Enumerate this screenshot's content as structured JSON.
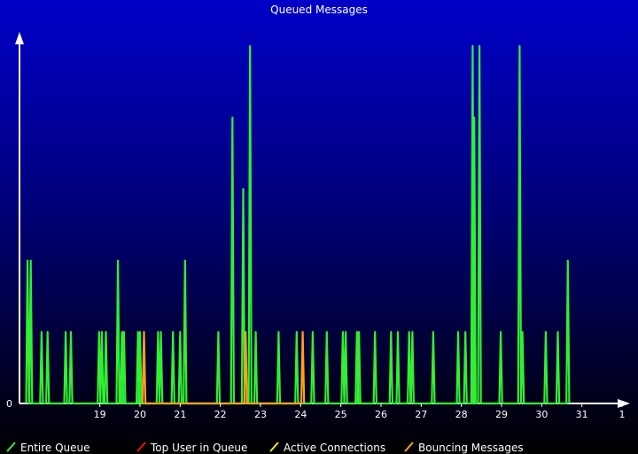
{
  "chart_data": {
    "type": "line",
    "title": "Queued Messages",
    "xlabel": "",
    "ylabel": "",
    "x_ticks": [
      "19",
      "20",
      "21",
      "22",
      "23",
      "24",
      "25",
      "26",
      "27",
      "28",
      "29",
      "30",
      "31",
      "1"
    ],
    "x_tick_positions": [
      19,
      20,
      21,
      22,
      23,
      24,
      25,
      26,
      27,
      28,
      29,
      30,
      31,
      32
    ],
    "y_ticks": [
      "0"
    ],
    "xlim": [
      17.0,
      32.0
    ],
    "ylim": [
      0,
      10
    ],
    "grid": false,
    "legend_position": "bottom",
    "series": [
      {
        "name": "Entire Queue",
        "color": "#33ee33",
        "spikes": [
          [
            17.2,
            4
          ],
          [
            17.28,
            4
          ],
          [
            17.55,
            2
          ],
          [
            17.7,
            2
          ],
          [
            18.15,
            2
          ],
          [
            18.28,
            2
          ],
          [
            18.98,
            2
          ],
          [
            19.05,
            2
          ],
          [
            19.15,
            2
          ],
          [
            19.45,
            4
          ],
          [
            19.55,
            2
          ],
          [
            19.6,
            2
          ],
          [
            19.95,
            2
          ],
          [
            20.0,
            2
          ],
          [
            20.45,
            2
          ],
          [
            20.52,
            2
          ],
          [
            20.82,
            2
          ],
          [
            21.0,
            2
          ],
          [
            21.12,
            4
          ],
          [
            21.95,
            2
          ],
          [
            22.3,
            8
          ],
          [
            22.57,
            6
          ],
          [
            22.74,
            10
          ],
          [
            22.88,
            2
          ],
          [
            23.45,
            2
          ],
          [
            23.9,
            2
          ],
          [
            24.3,
            2
          ],
          [
            24.65,
            2
          ],
          [
            25.05,
            2
          ],
          [
            25.12,
            2
          ],
          [
            25.4,
            2
          ],
          [
            25.45,
            2
          ],
          [
            25.85,
            2
          ],
          [
            26.25,
            2
          ],
          [
            26.42,
            2
          ],
          [
            26.7,
            2
          ],
          [
            26.78,
            2
          ],
          [
            27.3,
            2
          ],
          [
            27.92,
            2
          ],
          [
            28.1,
            2
          ],
          [
            28.28,
            10
          ],
          [
            28.32,
            8
          ],
          [
            28.45,
            10
          ],
          [
            28.98,
            2
          ],
          [
            29.45,
            10
          ],
          [
            29.52,
            2
          ],
          [
            30.1,
            2
          ],
          [
            30.4,
            2
          ],
          [
            30.65,
            4
          ]
        ]
      },
      {
        "name": "Top User in Queue",
        "color": "#ee1111",
        "spikes": []
      },
      {
        "name": "Active Connections",
        "color": "#eeee11",
        "spikes": []
      },
      {
        "name": "Bouncing Messages",
        "color": "#ffa020",
        "spikes": [
          [
            20.1,
            2
          ],
          [
            22.63,
            2
          ],
          [
            24.05,
            2
          ]
        ]
      }
    ]
  }
}
